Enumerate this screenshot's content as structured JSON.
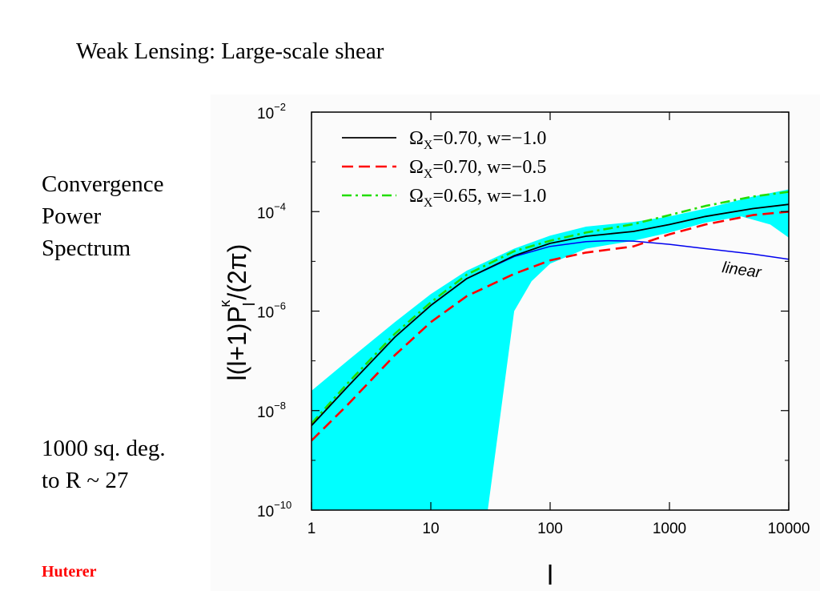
{
  "slide": {
    "title": "Weak Lensing: Large-scale shear",
    "left_text": [
      "Convergence",
      "Power",
      "Spectrum"
    ],
    "survey_text": [
      "1000 sq. deg.",
      "to R ~ 27"
    ],
    "credit": "Huterer",
    "credit_color": "#ff0000"
  },
  "chart_data": {
    "type": "line",
    "xscale": "log",
    "yscale": "log",
    "xlim": [
      1,
      10000
    ],
    "ylim": [
      1e-10,
      0.01
    ],
    "xlabel": "l",
    "ylabel": "l(l+1)P_l^κ/(2π)",
    "x_ticks": [
      {
        "value": 1,
        "label": "1"
      },
      {
        "value": 10,
        "label": "10"
      },
      {
        "value": 100,
        "label": "100"
      },
      {
        "value": 1000,
        "label": "1000"
      },
      {
        "value": 10000,
        "label": "10000"
      }
    ],
    "y_ticks": [
      {
        "value": 1e-10,
        "base": "10",
        "exp": "−10"
      },
      {
        "value": 1e-08,
        "base": "10",
        "exp": "−8"
      },
      {
        "value": 1e-06,
        "base": "10",
        "exp": "−6"
      },
      {
        "value": 0.0001,
        "base": "10",
        "exp": "−4"
      },
      {
        "value": 0.01,
        "base": "10",
        "exp": "−2"
      }
    ],
    "legend": {
      "position": "top-left",
      "entries": [
        {
          "label": "Ω",
          "sub": "X",
          "rest": "=0.70, w=−1.0",
          "series": 0
        },
        {
          "label": "Ω",
          "sub": "X",
          "rest": "=0.70, w=−0.5",
          "series": 1
        },
        {
          "label": "Ω",
          "sub": "X",
          "rest": "=0.65, w=−1.0",
          "series": 2
        }
      ]
    },
    "series": [
      {
        "color": "#000000",
        "dash": "solid",
        "x": [
          1,
          2,
          5,
          10,
          20,
          50,
          100,
          200,
          500,
          1000,
          2000,
          5000,
          10000
        ],
        "y": [
          5e-09,
          3e-08,
          3e-07,
          1.3e-06,
          4.5e-06,
          1.3e-05,
          2.3e-05,
          3.2e-05,
          4e-05,
          5.5e-05,
          8e-05,
          0.000115,
          0.00014
        ]
      },
      {
        "color": "#ff0000",
        "dash": "dashed",
        "x": [
          1,
          2,
          5,
          10,
          20,
          50,
          100,
          200,
          500,
          1000,
          2000,
          5000,
          10000
        ],
        "y": [
          2.5e-09,
          1.3e-08,
          1.3e-07,
          6e-07,
          2e-06,
          5.6e-06,
          1.05e-05,
          1.5e-05,
          2e-05,
          3.5e-05,
          5.5e-05,
          8.5e-05,
          0.0001
        ]
      },
      {
        "color": "#22dd00",
        "dash": "dashdot",
        "x": [
          1,
          2,
          5,
          10,
          20,
          50,
          100,
          200,
          500,
          1000,
          2000,
          5000,
          10000
        ],
        "y": [
          5.5e-09,
          3.5e-08,
          3.5e-07,
          1.5e-06,
          5.4e-06,
          1.6e-05,
          2.6e-05,
          3.8e-05,
          5.6e-05,
          8.5e-05,
          0.00013,
          0.0002,
          0.00025
        ]
      },
      {
        "color": "#0000ee",
        "dash": "solid",
        "annotation": "linear",
        "x": [
          1,
          2,
          5,
          10,
          20,
          50,
          100,
          200,
          300,
          500,
          1000,
          2000,
          5000,
          10000
        ],
        "y": [
          5e-09,
          3e-08,
          3e-07,
          1.3e-06,
          4.5e-06,
          1.25e-05,
          2e-05,
          2.5e-05,
          2.6e-05,
          2.55e-05,
          2.2e-05,
          1.8e-05,
          1.4e-05,
          1.1e-05
        ]
      }
    ],
    "band": {
      "color": "#00ffff",
      "x_upper": [
        1,
        2,
        5,
        10,
        20,
        50,
        100,
        200,
        500,
        1000,
        2000,
        5000,
        10000
      ],
      "y_upper": [
        2.5e-08,
        1e-07,
        6e-07,
        2.2e-06,
        6.5e-06,
        1.8e-05,
        3.3e-05,
        5e-05,
        6.2e-05,
        8e-05,
        0.000115,
        0.0002,
        0.00028
      ],
      "x_lower": [
        1,
        10,
        20,
        30,
        50,
        70,
        100,
        200,
        500,
        1000,
        2000,
        4000,
        7000,
        10000
      ],
      "y_lower": [
        1e-10,
        1e-10,
        1e-10,
        1e-10,
        1e-06,
        4e-06,
        9e-06,
        1.8e-05,
        2.6e-05,
        3.8e-05,
        6e-05,
        8e-05,
        5.5e-05,
        3e-05
      ]
    },
    "grid": false
  }
}
